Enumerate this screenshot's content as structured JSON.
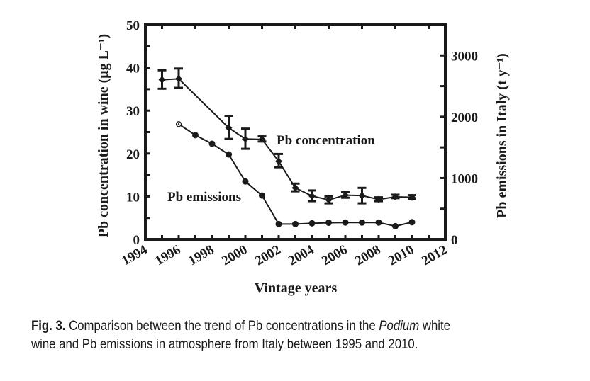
{
  "chart_data": {
    "type": "line",
    "title": "",
    "xlabel": "Vintage years",
    "ylabel": "Pb concentration in wine (μg L⁻¹)",
    "ylabel_right": "Pb emissions in Italy (t y⁻¹)",
    "xlim": [
      1994,
      2012
    ],
    "ylim": [
      0,
      50
    ],
    "ylim_right": [
      0,
      3500
    ],
    "x_ticks": [
      "1994",
      "1996",
      "1998",
      "2000",
      "2002",
      "2004",
      "2006",
      "2008",
      "2010",
      "2012"
    ],
    "y_ticks": [
      "0",
      "10",
      "20",
      "30",
      "40",
      "50"
    ],
    "y_ticks_right": [
      "0",
      "1000",
      "2000",
      "3000"
    ],
    "grid": false,
    "series": [
      {
        "name": "Pb concentration",
        "axis": "left",
        "marker": "diamond",
        "x": [
          1995,
          1996,
          1999,
          2000,
          2001,
          2002,
          2003,
          2004,
          2005,
          2006,
          2007,
          2008,
          2009,
          2010
        ],
        "y": [
          37.2,
          37.4,
          26.0,
          23.4,
          23.3,
          18.2,
          12.0,
          10.1,
          9.2,
          10.3,
          10.2,
          9.3,
          9.9,
          9.8
        ],
        "err_low": [
          35.1,
          35.3,
          23.4,
          21.1,
          22.8,
          16.8,
          11.2,
          8.9,
          8.4,
          9.7,
          8.4,
          8.9,
          9.6,
          9.4
        ],
        "err_high": [
          39.4,
          39.8,
          28.8,
          25.8,
          24.0,
          19.9,
          13.0,
          11.4,
          10.0,
          11.0,
          12.0,
          9.8,
          10.4,
          10.3
        ]
      },
      {
        "name": "Pb emissions",
        "axis": "right",
        "marker": "circle",
        "x": [
          1996,
          1997,
          1998,
          1999,
          2000,
          2001,
          2002,
          2003,
          2004,
          2005,
          2006,
          2007,
          2008,
          2009,
          2010
        ],
        "y": [
          1880,
          1700,
          1560,
          1385,
          945,
          715,
          250,
          250,
          262,
          272,
          275,
          275,
          275,
          215,
          280
        ]
      }
    ],
    "annotations": [
      {
        "text": "Pb concentration",
        "x": 2002,
        "y": 23.3
      },
      {
        "text": "Pb emissions",
        "x": 1996.4,
        "y": 10.0
      }
    ]
  },
  "caption": {
    "label": "Fig. 3.",
    "text_before": " Comparison between the trend of Pb concentrations in the ",
    "italic": "Podium",
    "text_after": " white",
    "line2": "wine and Pb emissions in atmosphere from Italy between 1995 and 2010."
  }
}
